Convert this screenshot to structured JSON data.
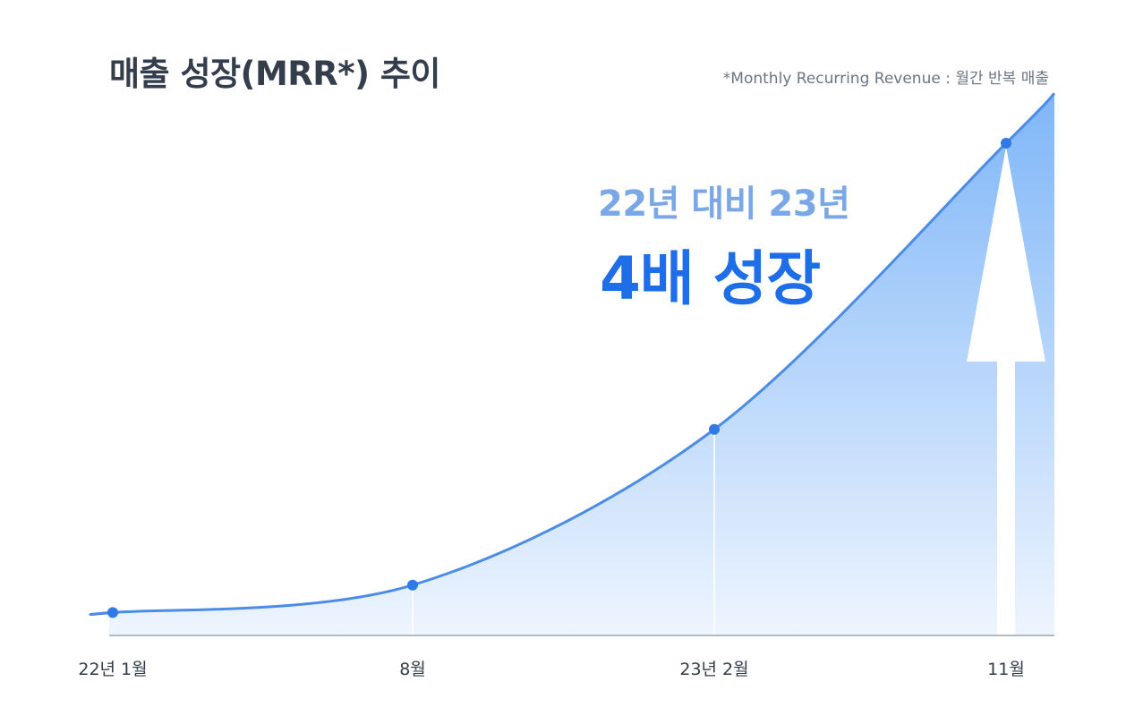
{
  "title": "매출 성장(MRR*) 추이",
  "footnote": "*Monthly Recurring Revenue : 월간 반복 매출",
  "headline": {
    "sub": "22년 대비 23년",
    "main": "4배 성장"
  },
  "colors": {
    "line": "#4a8ce8",
    "point": "#2f7ae5",
    "area_top": "#7fb6f8",
    "area_bottom": "#eef5fe",
    "axis": "#9aa7b8",
    "headline_main": "#1d6ee8",
    "headline_sub": "#7aa7e6"
  },
  "chart_data": {
    "type": "area",
    "title": "매출 성장(MRR*) 추이",
    "categories": [
      "22년 1월",
      "8월",
      "23년 2월",
      "11월"
    ],
    "values": [
      1,
      2.2,
      9,
      21.5
    ],
    "ylim": [
      0,
      24
    ],
    "grid": false,
    "legend": "none",
    "annotation": "22년 대비 23년 4배 성장",
    "arrow": "upward arrow at 11월"
  }
}
